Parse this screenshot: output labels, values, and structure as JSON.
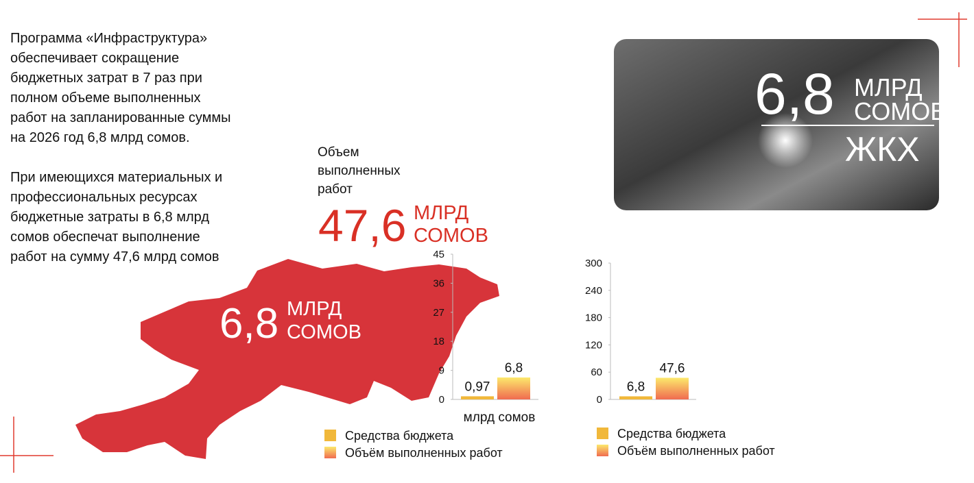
{
  "text": {
    "paragraphs": [
      [
        "Программа «Инфраструктура»",
        "обеспечивает сокращение",
        "бюджетных затрат в 7 раз при",
        "полном объеме выполненных",
        "работ на запланированные суммы",
        "на 2026 год 6,8 млрд сомов."
      ],
      [
        "При имеющихся материальных и",
        "профессиональных ресурсах",
        "бюджетные затраты в 6,8 млрд",
        "сомов обеспечат выполнение",
        "работ на сумму 47,6 млрд сомов"
      ]
    ]
  },
  "works": {
    "label": [
      "Объем",
      "выполненных",
      "работ"
    ],
    "value": "47,6",
    "unit": [
      "МЛРД",
      "СОМОВ"
    ]
  },
  "map": {
    "value": "6,8",
    "unit": [
      "МЛРД",
      "СОМОВ"
    ]
  },
  "photo": {
    "value": "6,8",
    "unit": [
      "МЛРД",
      "СОМОВ"
    ],
    "caption": "ЖКХ"
  },
  "chart_data": [
    {
      "type": "bar",
      "categories": [
        null
      ],
      "x_label": "млрд сомов",
      "ylim": [
        0,
        45
      ],
      "yticks": [
        0,
        9,
        18,
        27,
        36,
        45
      ],
      "series": [
        {
          "name": "Средства бюджета",
          "color": "#f1b83a",
          "values": [
            0.97
          ],
          "value_labels": [
            "0,97"
          ]
        },
        {
          "name": "Объём выполненных работ",
          "colors": [
            "#fce96c",
            "#f06b50"
          ],
          "values": [
            6.8
          ],
          "value_labels": [
            "6,8"
          ]
        }
      ]
    },
    {
      "type": "bar",
      "categories": [
        null
      ],
      "ylim": [
        0,
        300
      ],
      "yticks": [
        0,
        60,
        120,
        180,
        240,
        300
      ],
      "series": [
        {
          "name": "Средства бюджета",
          "color": "#f1b83a",
          "values": [
            6.8
          ],
          "value_labels": [
            "6,8"
          ]
        },
        {
          "name": "Объём выполненных работ",
          "colors": [
            "#fce96c",
            "#f06b50"
          ],
          "values": [
            47.6
          ],
          "value_labels": [
            "47,6"
          ]
        }
      ]
    }
  ]
}
